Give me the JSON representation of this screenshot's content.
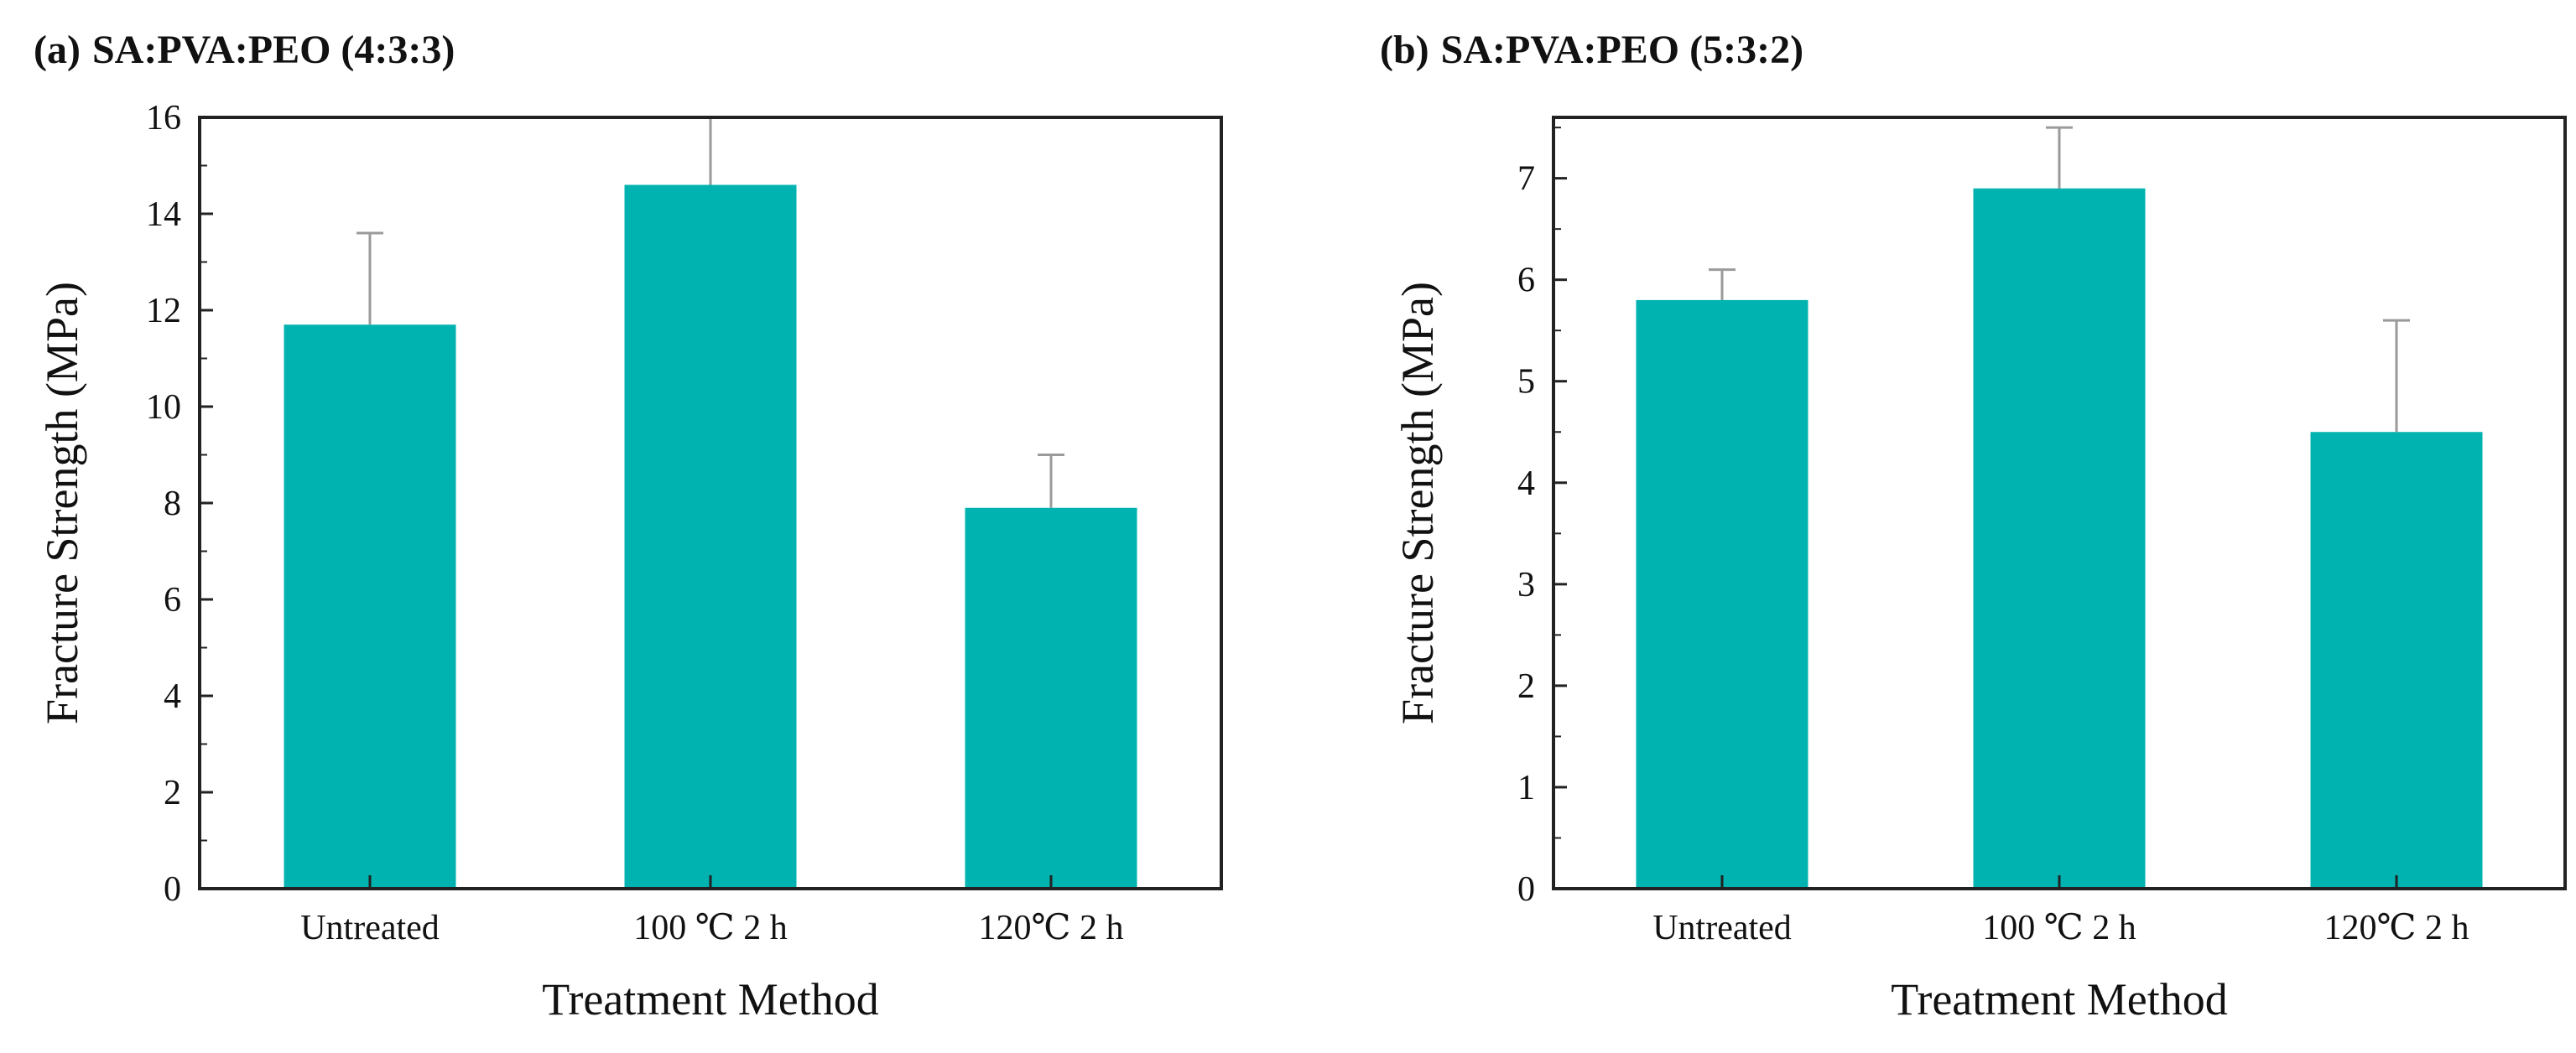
{
  "colors": {
    "bar": "#00b3b0",
    "error_bar": "#9a9a9a",
    "axis": "#222222"
  },
  "chart_data": [
    {
      "type": "bar",
      "panel_label": "(a)",
      "title": "SA:PVA:PEO (4:3:3)",
      "xlabel": "Treatment Method",
      "ylabel": "Fracture Strength (MPa)",
      "categories": [
        "Untreated",
        "100 ℃  2 h",
        "120℃  2 h"
      ],
      "values": [
        11.7,
        14.6,
        7.9
      ],
      "error_upper": [
        1.9,
        1.4,
        1.1
      ],
      "ylim": [
        0,
        16
      ],
      "yticks": [
        0,
        2,
        4,
        6,
        8,
        10,
        12,
        14,
        16
      ],
      "grid": false
    },
    {
      "type": "bar",
      "panel_label": "(b)",
      "title": "SA:PVA:PEO (5:3:2)",
      "xlabel": "Treatment Method",
      "ylabel": "Fracture Strength (MPa)",
      "categories": [
        "Untreated",
        "100 ℃  2 h",
        "120℃  2 h"
      ],
      "values": [
        5.8,
        6.9,
        4.5
      ],
      "error_upper": [
        0.3,
        0.6,
        1.1
      ],
      "ylim": [
        0,
        7.6
      ],
      "yticks": [
        0,
        1,
        2,
        3,
        4,
        5,
        6,
        7
      ],
      "grid": false
    }
  ]
}
